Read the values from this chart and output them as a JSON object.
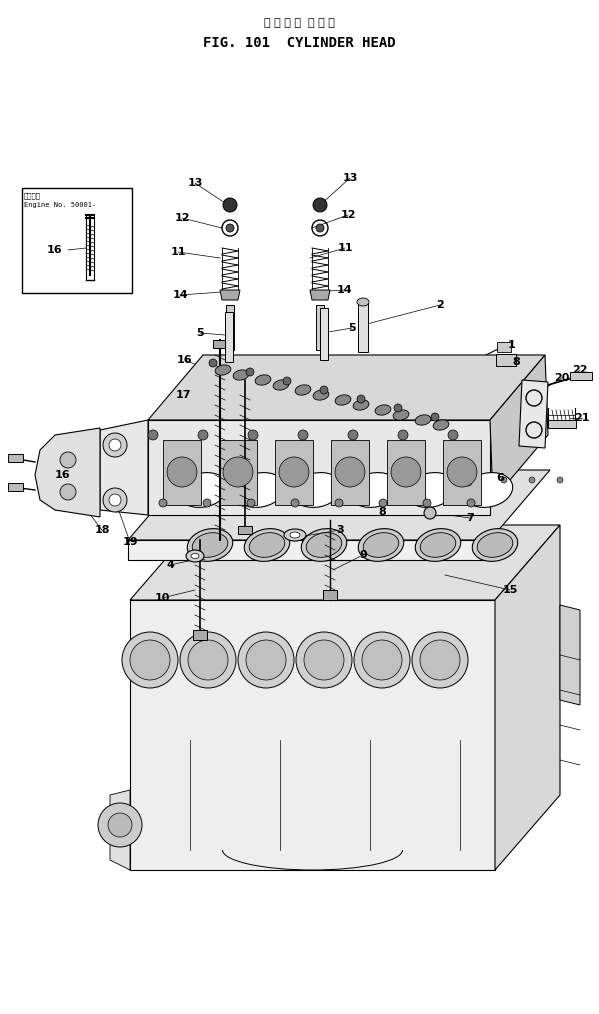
{
  "title_japanese": "シ リ ン ダ  ヘ ッ ド",
  "title_english": "FIG. 101  CYLINDER HEAD",
  "bg_color": "#ffffff",
  "fig_width": 5.99,
  "fig_height": 10.14,
  "dpi": 100,
  "line_color": "#000000",
  "lw": 0.8
}
